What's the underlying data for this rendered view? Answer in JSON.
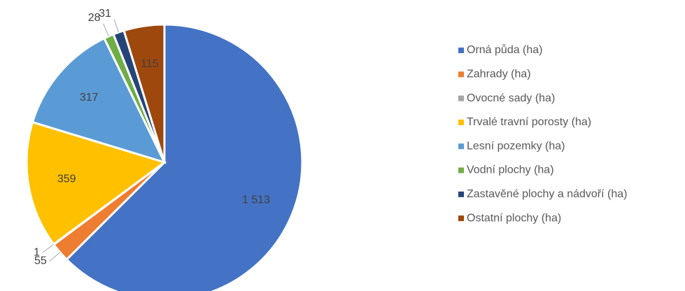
{
  "chart_data": {
    "type": "pie",
    "categories": [
      "Orná půda (ha)",
      "Zahrady (ha)",
      "Ovocné sady (ha)",
      "Trvalé travní porosty (ha)",
      "Lesní pozemky (ha)",
      "Vodní plochy (ha)",
      "Zastavěné plochy a nádvoří (ha)",
      "Ostatní plochy (ha)"
    ],
    "values": [
      1513,
      55,
      1,
      359,
      317,
      28,
      31,
      115
    ],
    "value_labels": [
      "1 513",
      "55",
      "1",
      "359",
      "317",
      "28",
      "31",
      "115"
    ],
    "colors": [
      "#4472c4",
      "#ed7d31",
      "#a5a5a5",
      "#ffc000",
      "#5b9bd5",
      "#70ad47",
      "#264478",
      "#9e480e"
    ],
    "legend": "right"
  }
}
